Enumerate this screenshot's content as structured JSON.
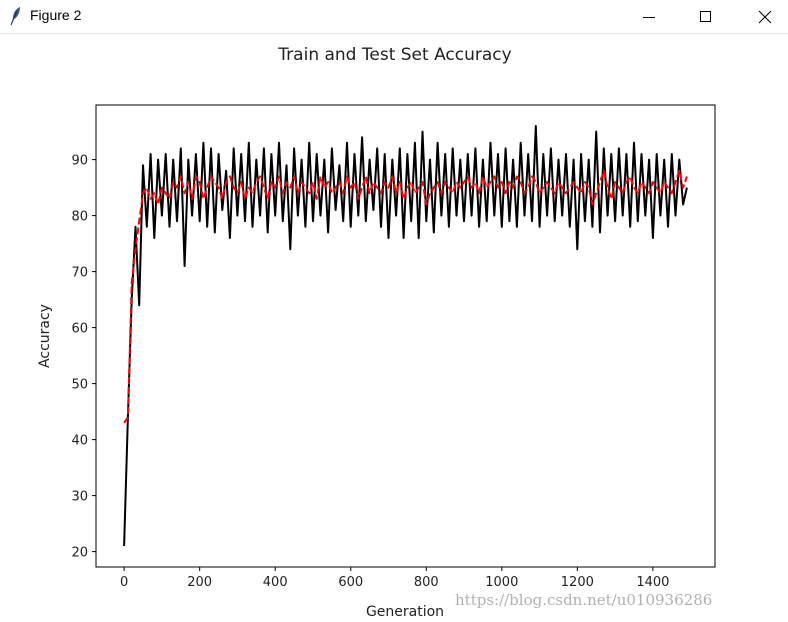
{
  "window": {
    "title": "Figure 2",
    "icon": "feather-icon",
    "controls": [
      "minimize-icon",
      "maximize-icon",
      "close-icon"
    ]
  },
  "watermark": "https://blog.csdn.net/u010936286",
  "chart_data": {
    "type": "line",
    "title": "Train and Test Set Accuracy",
    "xlabel": "Generation",
    "ylabel": "Accuracy",
    "xlim": [
      -74.5,
      1564.5
    ],
    "ylim": [
      17.25,
      99.75
    ],
    "xticks": [
      0,
      200,
      400,
      600,
      800,
      1000,
      1200,
      1400
    ],
    "yticks": [
      20,
      30,
      40,
      50,
      60,
      70,
      80,
      90
    ],
    "grid": false,
    "x": [
      0,
      10,
      20,
      30,
      40,
      50,
      60,
      70,
      80,
      90,
      100,
      110,
      120,
      130,
      140,
      150,
      160,
      170,
      180,
      190,
      200,
      210,
      220,
      230,
      240,
      250,
      260,
      270,
      280,
      290,
      300,
      310,
      320,
      330,
      340,
      350,
      360,
      370,
      380,
      390,
      400,
      410,
      420,
      430,
      440,
      450,
      460,
      470,
      480,
      490,
      500,
      510,
      520,
      530,
      540,
      550,
      560,
      570,
      580,
      590,
      600,
      610,
      620,
      630,
      640,
      650,
      660,
      670,
      680,
      690,
      700,
      710,
      720,
      730,
      740,
      750,
      760,
      770,
      780,
      790,
      800,
      810,
      820,
      830,
      840,
      850,
      860,
      870,
      880,
      890,
      900,
      910,
      920,
      930,
      940,
      950,
      960,
      970,
      980,
      990,
      1000,
      1010,
      1020,
      1030,
      1040,
      1050,
      1060,
      1070,
      1080,
      1090,
      1100,
      1110,
      1120,
      1130,
      1140,
      1150,
      1160,
      1170,
      1180,
      1190,
      1200,
      1210,
      1220,
      1230,
      1240,
      1250,
      1260,
      1270,
      1280,
      1290,
      1300,
      1310,
      1320,
      1330,
      1340,
      1350,
      1360,
      1370,
      1380,
      1390,
      1400,
      1410,
      1420,
      1430,
      1440,
      1450,
      1460,
      1470,
      1480,
      1490
    ],
    "series": [
      {
        "style": "solid",
        "color": "#000000",
        "values": [
          21,
          44,
          65,
          78,
          64,
          89,
          78,
          91,
          76,
          90,
          80,
          91,
          78,
          90,
          79,
          92,
          71,
          90,
          80,
          91,
          79,
          93,
          78,
          92,
          77,
          91,
          81,
          88,
          76,
          92,
          80,
          91,
          79,
          93,
          78,
          90,
          80,
          92,
          77,
          91,
          80,
          93,
          79,
          89,
          74,
          92,
          80,
          90,
          78,
          93,
          79,
          91,
          80,
          90,
          77,
          92,
          81,
          89,
          79,
          93,
          78,
          91,
          80,
          94,
          79,
          90,
          81,
          92,
          78,
          91,
          76,
          90,
          80,
          92,
          76,
          91,
          79,
          93,
          76,
          95,
          79,
          90,
          77,
          93,
          80,
          91,
          78,
          92,
          80,
          90,
          79,
          91,
          80,
          92,
          78,
          90,
          79,
          93,
          80,
          91,
          78,
          92,
          79,
          90,
          78,
          93,
          80,
          91,
          79,
          96,
          78,
          91,
          80,
          92,
          79,
          90,
          80,
          91,
          78,
          90,
          74,
          91,
          79,
          90,
          78,
          95,
          77,
          92,
          80,
          91,
          79,
          92,
          80,
          91,
          78,
          93,
          79,
          91,
          80,
          90,
          76,
          91,
          80,
          90,
          78,
          91,
          80,
          90,
          82,
          85
        ]
      },
      {
        "style": "dashed",
        "color": "#ff0000",
        "values": [
          43,
          44,
          68,
          74,
          79,
          84,
          85,
          83,
          84,
          82,
          85,
          84,
          83,
          86,
          85,
          87,
          84,
          86,
          83,
          87,
          86,
          83,
          85,
          87,
          86,
          85,
          83,
          86,
          87,
          85,
          84,
          86,
          83,
          85,
          84,
          86,
          87,
          85,
          83,
          86,
          85,
          87,
          84,
          86,
          85,
          87,
          84,
          86,
          85,
          84,
          86,
          83,
          87,
          85,
          86,
          84,
          85,
          86,
          84,
          87,
          85,
          86,
          83,
          85,
          87,
          84,
          86,
          85,
          84,
          86,
          85,
          87,
          84,
          86,
          83,
          85,
          86,
          84,
          85,
          86,
          82,
          84,
          85,
          86,
          84,
          86,
          85,
          84,
          86,
          85,
          86,
          87,
          85,
          86,
          84,
          87,
          85,
          86,
          87,
          85,
          86,
          84,
          86,
          85,
          87,
          86,
          84,
          85,
          87,
          86,
          84,
          85,
          86,
          85,
          84,
          86,
          85,
          84,
          85,
          86,
          85,
          84,
          86,
          85,
          82,
          84,
          86,
          88,
          85,
          83,
          86,
          85,
          84,
          86,
          87,
          85,
          84,
          86,
          85,
          84,
          86,
          85,
          84,
          86,
          85,
          84,
          86,
          88,
          85,
          87
        ]
      }
    ]
  }
}
